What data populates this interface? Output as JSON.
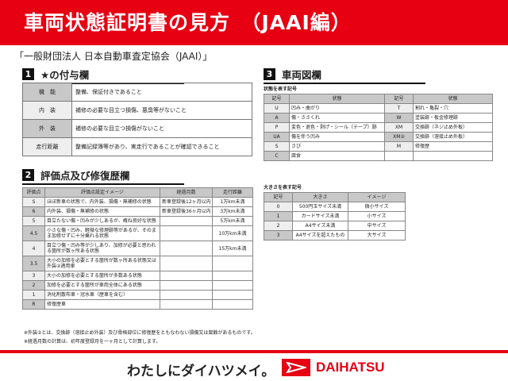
{
  "header": {
    "title": "車両状態証明書の見方　（JAAI編）"
  },
  "subtitle": "「一般財団法人 日本自動車査定協会（JAAI）」",
  "section1": {
    "num": "1",
    "title": "★の付与欄",
    "rows": [
      {
        "label": "機　能",
        "text": "整備、保証付きであること"
      },
      {
        "label": "内　装",
        "text": "補修の必要な目立つ損傷、悪臭等がないこと"
      },
      {
        "label": "外　装",
        "text": "補修の必要な目立つ損傷がないこと"
      },
      {
        "label": "走行距離",
        "text": "整備記録簿等があり、実走行であることが確認できること"
      }
    ]
  },
  "section2": {
    "num": "2",
    "title": "評価点及び修復歴欄",
    "headers": [
      "評価点",
      "評価点設定イメージ",
      "経過月数",
      "走行距離"
    ],
    "rows": [
      [
        "S",
        "ほぼ新車の状態で、内外装、損傷・無補修の状態",
        "新車登録後12ヶ月以内",
        "1万km未満"
      ],
      [
        "6",
        "内外装、損傷・無補修の状態",
        "新車登録後36ヶ月以内",
        "3万km未満"
      ],
      [
        "5",
        "目立たない傷・凹みが少しあるが、概ね良好な状態",
        "",
        "5万km未満"
      ],
      [
        "4.5",
        "小さな傷・凹み、軽微な修理跡等があるが、そのまま加修せずに十分乗れる状態",
        "",
        "10万km未満"
      ],
      [
        "4",
        "目立つ傷・凹み等が少しあり、加修が必要と思われる箇所が数ヶ所ある状態",
        "",
        "15万km未満"
      ],
      [
        "3.5",
        "大小の加修を必要とする箇所が数ヶ所ある状態又は外装②適用車",
        "",
        ""
      ],
      [
        "3",
        "大小の加修を必要とする箇所が多数ある状態",
        "",
        ""
      ],
      [
        "2",
        "加修を必要とする箇所が車両全体にある状態",
        "",
        ""
      ],
      [
        "1",
        "消化剤散布車・冠水車（歴車を含む）",
        "",
        ""
      ],
      [
        "R",
        "修復歴車",
        "",
        ""
      ]
    ]
  },
  "notes": [
    "※外装②とは、交換跡（溶接止め外装）及び骨格部位に修復歴をともなわない損傷又は腐蝕があるものです。",
    "※経過月数の計算は、初年度登録月を一ヶ月として計算します。"
  ],
  "section3": {
    "num": "3",
    "title": "車両図欄",
    "state_label": "状態を表す記号",
    "state_headers": [
      "記号",
      "状態",
      "記号",
      "状態"
    ],
    "state_rows": [
      [
        "U",
        "凹み・曲がり",
        "T",
        "割れ・亀裂・穴"
      ],
      [
        "A",
        "傷・ささくれ",
        "W",
        "塗装跡・板金修理跡"
      ],
      [
        "P",
        "変色・退色・剥げ・シール（テープ）跡",
        "XM",
        "交換跡（ネジ止め外板）"
      ],
      [
        "UA",
        "傷を伴う凹み",
        "XM②",
        "交換跡（溶接止め外板）"
      ],
      [
        "S",
        "さび",
        "M",
        "修復歴"
      ],
      [
        "C",
        "腐食",
        "",
        ""
      ]
    ],
    "size_label": "大きさを表す記号",
    "size_headers": [
      "記号",
      "大きさ",
      "イメージ"
    ],
    "size_rows": [
      [
        "0",
        "500円玉サイズ未満",
        "微小サイズ"
      ],
      [
        "1",
        "カードサイズ未満",
        "小サイズ"
      ],
      [
        "2",
        "A4サイズ未満",
        "中サイズ"
      ],
      [
        "3",
        "A4サイズを超えたもの",
        "大サイズ"
      ]
    ]
  },
  "footer": {
    "slogan": "わたしにダイハツメイ。",
    "brand": "DAIHATSU"
  },
  "colors": {
    "accent": "#e60012",
    "header_cell": "#c8c8c8",
    "light_cell": "#eeeeee"
  }
}
